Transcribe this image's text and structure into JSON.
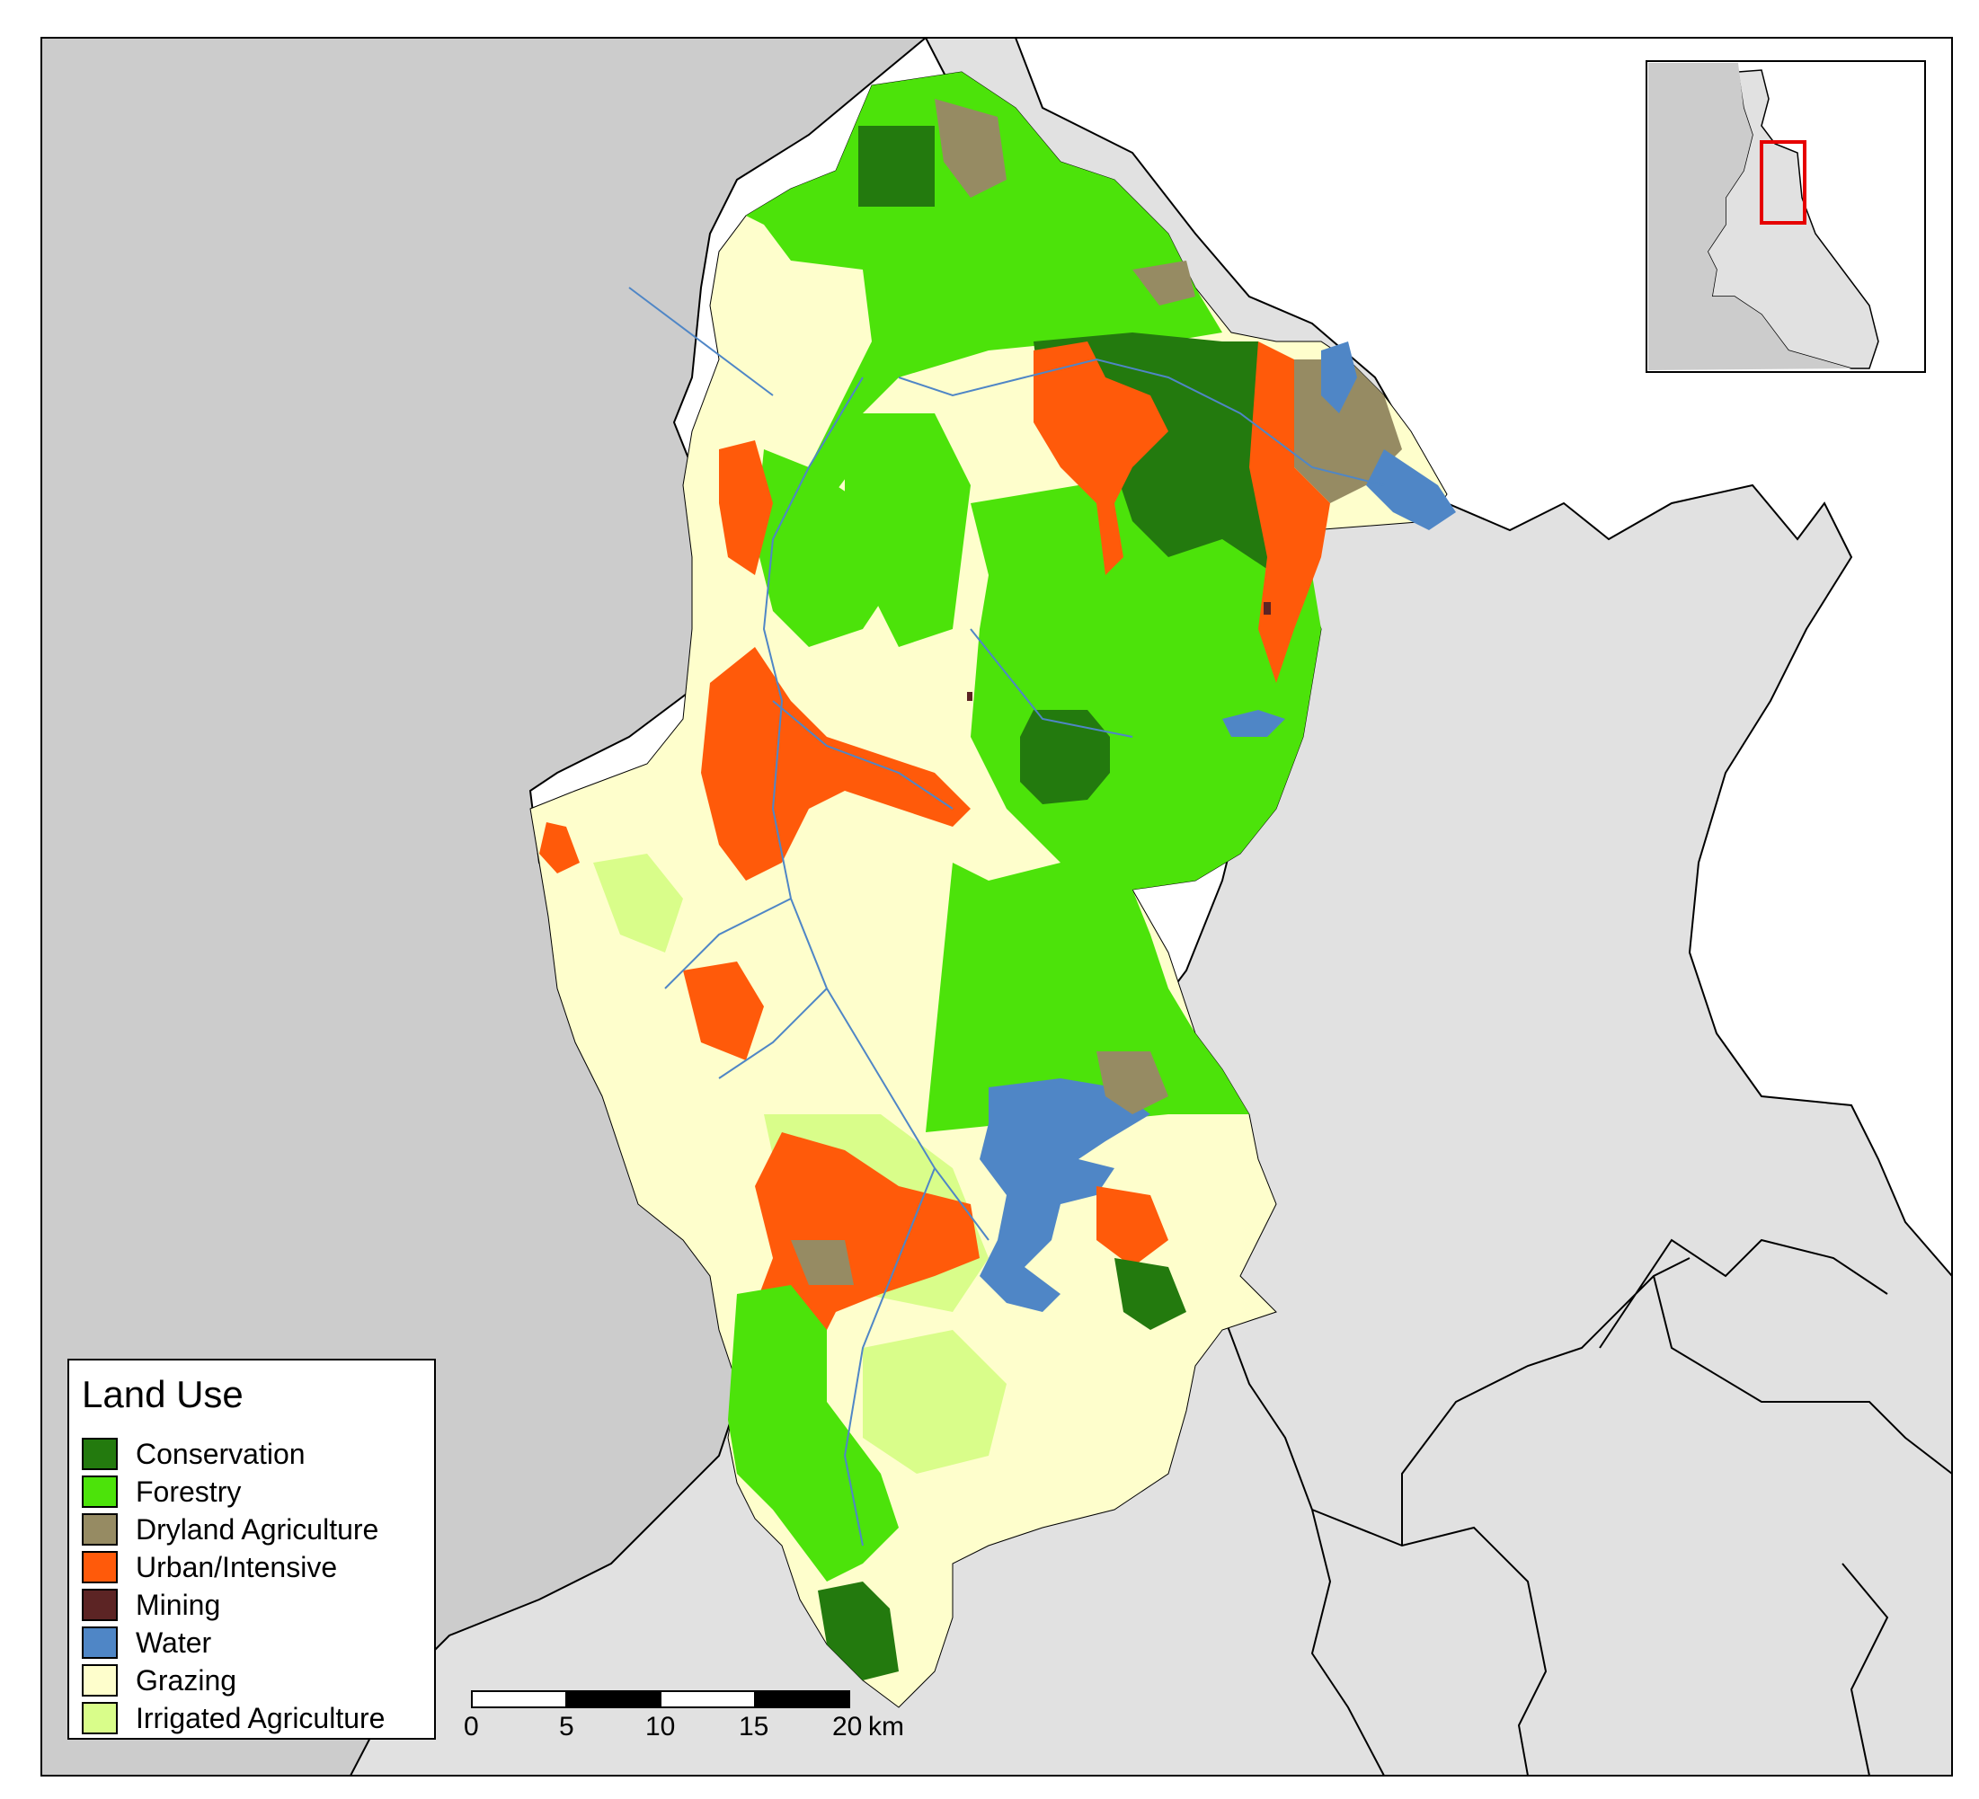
{
  "colors": {
    "conservation": "#237a0e",
    "forestry": "#4ce30a",
    "dryland": "#968b63",
    "urban": "#ff5a0a",
    "mining": "#5c2424",
    "water": "#4f86c6",
    "grazing": "#fefecc",
    "irrigated": "#d9fd8a",
    "outside_land": "#e1e1e1",
    "outside_west": "#cccccc",
    "sea": "#ffffff",
    "locator_highlight": "#e60000"
  },
  "legend": {
    "title": "Land Use",
    "items": [
      {
        "label": "Conservation",
        "color": "#237a0e"
      },
      {
        "label": "Forestry",
        "color": "#4ce30a"
      },
      {
        "label": "Dryland Agriculture",
        "color": "#968b63"
      },
      {
        "label": "Urban/Intensive",
        "color": "#ff5a0a"
      },
      {
        "label": "Mining",
        "color": "#5c2424"
      },
      {
        "label": "Water",
        "color": "#4f86c6"
      },
      {
        "label": "Grazing",
        "color": "#fefecc"
      },
      {
        "label": "Irrigated Agriculture",
        "color": "#d9fd8a"
      }
    ]
  },
  "scale_bar": {
    "ticks": [
      "0",
      "5",
      "10",
      "15",
      "20"
    ],
    "unit": "km"
  }
}
